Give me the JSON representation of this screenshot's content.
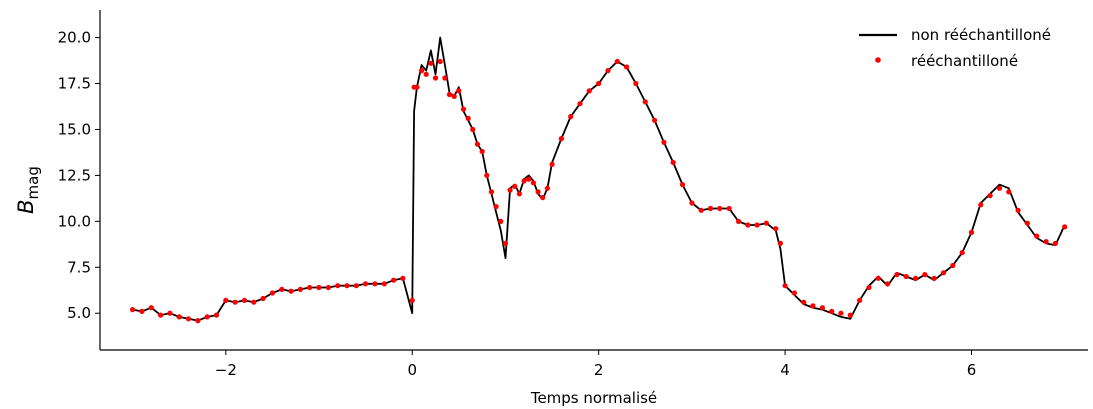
{
  "chart_data": {
    "type": "line",
    "title": "",
    "xlabel": "Temps normalisé",
    "ylabel": {
      "main": "B",
      "sub": "mag"
    },
    "xlim": [
      -3.35,
      7.25
    ],
    "ylim": [
      3.0,
      21.5
    ],
    "xticks": [
      -2,
      0,
      2,
      4,
      6
    ],
    "xtick_labels": [
      "−2",
      "0",
      "2",
      "4",
      "6"
    ],
    "yticks": [
      5.0,
      7.5,
      10.0,
      12.5,
      15.0,
      17.5,
      20.0
    ],
    "ytick_labels": [
      "5.0",
      "7.5",
      "10.0",
      "12.5",
      "15.0",
      "17.5",
      "20.0"
    ],
    "grid": false,
    "legend_position": "top-right",
    "colors": {
      "non_resampled": "#000000",
      "resampled": "#ff0000"
    },
    "series": [
      {
        "name": "non rééchantilloné",
        "style": "line",
        "x": [
          -3.0,
          -2.9,
          -2.8,
          -2.7,
          -2.6,
          -2.5,
          -2.4,
          -2.3,
          -2.2,
          -2.1,
          -2.0,
          -1.9,
          -1.8,
          -1.7,
          -1.6,
          -1.5,
          -1.4,
          -1.3,
          -1.2,
          -1.1,
          -1.0,
          -0.9,
          -0.8,
          -0.7,
          -0.6,
          -0.5,
          -0.4,
          -0.3,
          -0.2,
          -0.1,
          0.0,
          0.02,
          0.05,
          0.1,
          0.15,
          0.2,
          0.25,
          0.3,
          0.35,
          0.4,
          0.45,
          0.5,
          0.55,
          0.6,
          0.65,
          0.7,
          0.75,
          0.8,
          0.85,
          0.9,
          0.95,
          1.0,
          1.05,
          1.1,
          1.15,
          1.2,
          1.25,
          1.3,
          1.35,
          1.4,
          1.45,
          1.5,
          1.6,
          1.7,
          1.8,
          1.9,
          2.0,
          2.1,
          2.2,
          2.3,
          2.4,
          2.5,
          2.6,
          2.7,
          2.8,
          2.9,
          3.0,
          3.1,
          3.2,
          3.3,
          3.4,
          3.5,
          3.6,
          3.7,
          3.8,
          3.9,
          3.95,
          4.0,
          4.1,
          4.2,
          4.3,
          4.4,
          4.5,
          4.6,
          4.7,
          4.8,
          4.9,
          5.0,
          5.1,
          5.2,
          5.3,
          5.4,
          5.5,
          5.6,
          5.7,
          5.8,
          5.9,
          6.0,
          6.1,
          6.2,
          6.3,
          6.4,
          6.5,
          6.6,
          6.7,
          6.8,
          6.9,
          7.0
        ],
        "y": [
          5.2,
          5.1,
          5.3,
          4.9,
          5.0,
          4.8,
          4.7,
          4.6,
          4.8,
          4.9,
          5.7,
          5.6,
          5.7,
          5.6,
          5.8,
          6.1,
          6.3,
          6.2,
          6.3,
          6.4,
          6.4,
          6.4,
          6.5,
          6.5,
          6.5,
          6.6,
          6.6,
          6.6,
          6.8,
          6.9,
          5.0,
          16.0,
          17.3,
          18.5,
          18.2,
          19.3,
          18.0,
          20.0,
          18.5,
          17.0,
          16.8,
          17.3,
          16.0,
          15.5,
          15.0,
          14.2,
          13.8,
          12.5,
          11.5,
          10.5,
          9.5,
          8.0,
          11.8,
          12.0,
          11.5,
          12.3,
          12.5,
          12.2,
          11.5,
          11.2,
          11.8,
          13.2,
          14.5,
          15.7,
          16.4,
          17.1,
          17.5,
          18.2,
          18.7,
          18.4,
          17.5,
          16.5,
          15.5,
          14.3,
          13.2,
          12.0,
          11.0,
          10.6,
          10.7,
          10.7,
          10.7,
          10.0,
          9.8,
          9.8,
          9.9,
          9.5,
          8.5,
          6.5,
          6.0,
          5.5,
          5.3,
          5.2,
          5.0,
          4.8,
          4.7,
          5.7,
          6.5,
          7.0,
          6.5,
          7.2,
          7.0,
          6.8,
          7.1,
          6.8,
          7.2,
          7.6,
          8.3,
          9.4,
          11.0,
          11.5,
          12.0,
          11.8,
          10.5,
          9.8,
          9.1,
          8.8,
          8.7,
          9.8
        ]
      },
      {
        "name": "rééchantilloné",
        "style": "markers",
        "x": [
          -3.0,
          -2.9,
          -2.8,
          -2.7,
          -2.6,
          -2.5,
          -2.4,
          -2.3,
          -2.2,
          -2.1,
          -2.0,
          -1.9,
          -1.8,
          -1.7,
          -1.6,
          -1.5,
          -1.4,
          -1.3,
          -1.2,
          -1.1,
          -1.0,
          -0.9,
          -0.8,
          -0.7,
          -0.6,
          -0.5,
          -0.4,
          -0.3,
          -0.2,
          -0.1,
          0.0,
          0.02,
          0.05,
          0.1,
          0.15,
          0.2,
          0.25,
          0.3,
          0.35,
          0.4,
          0.45,
          0.5,
          0.55,
          0.6,
          0.65,
          0.7,
          0.75,
          0.8,
          0.85,
          0.9,
          0.95,
          1.0,
          1.05,
          1.1,
          1.15,
          1.2,
          1.25,
          1.3,
          1.35,
          1.4,
          1.45,
          1.5,
          1.6,
          1.7,
          1.8,
          1.9,
          2.0,
          2.1,
          2.2,
          2.3,
          2.4,
          2.5,
          2.6,
          2.7,
          2.8,
          2.9,
          3.0,
          3.1,
          3.2,
          3.3,
          3.4,
          3.5,
          3.6,
          3.7,
          3.8,
          3.9,
          3.95,
          4.0,
          4.1,
          4.2,
          4.3,
          4.4,
          4.5,
          4.6,
          4.7,
          4.8,
          4.9,
          5.0,
          5.1,
          5.2,
          5.3,
          5.4,
          5.5,
          5.6,
          5.7,
          5.8,
          5.9,
          6.0,
          6.1,
          6.2,
          6.3,
          6.4,
          6.5,
          6.6,
          6.7,
          6.8,
          6.9,
          7.0
        ],
        "y": [
          5.2,
          5.1,
          5.3,
          4.9,
          5.0,
          4.8,
          4.7,
          4.6,
          4.8,
          4.9,
          5.7,
          5.6,
          5.7,
          5.6,
          5.8,
          6.1,
          6.3,
          6.2,
          6.3,
          6.4,
          6.4,
          6.4,
          6.5,
          6.5,
          6.5,
          6.6,
          6.6,
          6.6,
          6.8,
          6.9,
          5.7,
          17.3,
          17.3,
          18.2,
          18.0,
          18.6,
          17.8,
          18.7,
          17.8,
          16.9,
          16.8,
          17.1,
          16.1,
          15.6,
          15.0,
          14.2,
          13.8,
          12.5,
          11.6,
          10.8,
          10.0,
          8.8,
          11.7,
          11.9,
          11.5,
          12.2,
          12.3,
          12.1,
          11.6,
          11.3,
          11.8,
          13.1,
          14.5,
          15.7,
          16.4,
          17.1,
          17.5,
          18.2,
          18.7,
          18.4,
          17.5,
          16.5,
          15.5,
          14.3,
          13.2,
          12.0,
          11.0,
          10.6,
          10.7,
          10.7,
          10.7,
          10.0,
          9.8,
          9.8,
          9.9,
          9.6,
          8.8,
          6.5,
          6.1,
          5.6,
          5.4,
          5.3,
          5.1,
          5.0,
          4.9,
          5.7,
          6.4,
          6.9,
          6.6,
          7.1,
          7.0,
          6.9,
          7.1,
          6.9,
          7.2,
          7.6,
          8.3,
          9.4,
          10.9,
          11.4,
          11.8,
          11.6,
          10.6,
          9.9,
          9.2,
          8.9,
          8.8,
          9.7
        ]
      }
    ]
  }
}
